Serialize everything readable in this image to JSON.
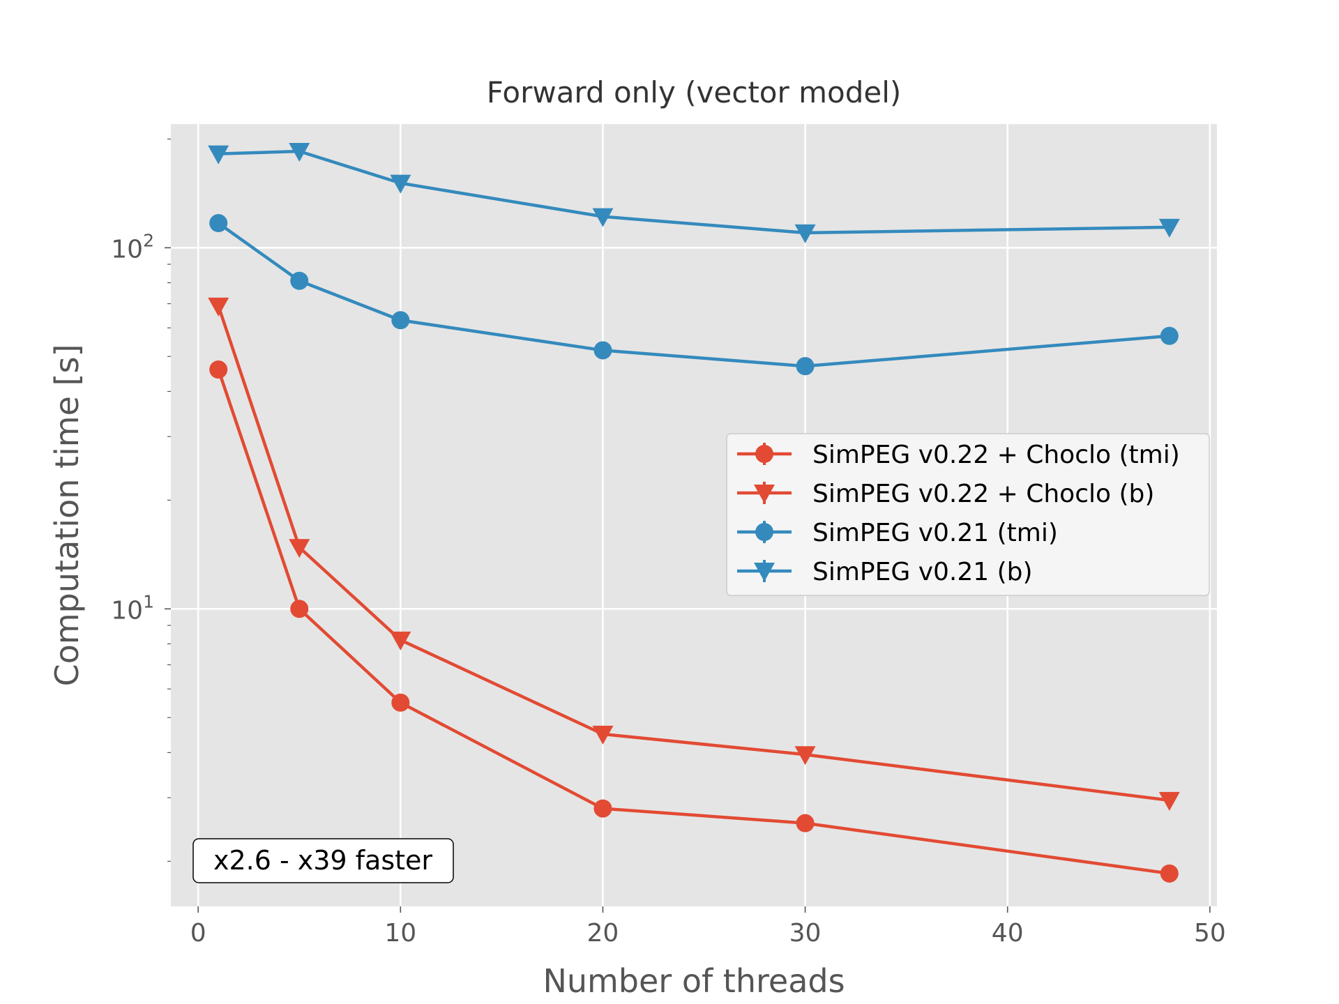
{
  "chart_data": {
    "type": "line",
    "title": "Forward only (vector model)",
    "xlabel": "Number of threads",
    "ylabel": "Computation time [s]",
    "xlim": [
      -1.35,
      50.35
    ],
    "ylim": [
      1.5,
      220
    ],
    "yscale": "log",
    "xticks": [
      0,
      10,
      20,
      30,
      40,
      50
    ],
    "xtick_labels": [
      "0",
      "10",
      "20",
      "30",
      "40",
      "50"
    ],
    "yticks": [
      10,
      100
    ],
    "ytick_labels": [
      {
        "base": "10",
        "exp": "1"
      },
      {
        "base": "10",
        "exp": "2"
      }
    ],
    "grid": true,
    "legend_position": "center-right",
    "annotation": "x2.6 - x39 faster",
    "x": [
      1,
      5,
      10,
      20,
      30,
      48
    ],
    "series": [
      {
        "name": "SimPEG v0.22 + Choclo (tmi)",
        "color": "#e24a33",
        "marker": "circle",
        "values": [
          46,
          10,
          5.5,
          2.8,
          2.55,
          1.85
        ]
      },
      {
        "name": "SimPEG v0.22 + Choclo (b)",
        "color": "#e24a33",
        "marker": "triangle-down",
        "values": [
          69,
          14.8,
          8.2,
          4.5,
          3.95,
          2.95
        ]
      },
      {
        "name": "SimPEG v0.21 (tmi)",
        "color": "#348abd",
        "marker": "circle",
        "values": [
          117,
          81,
          63,
          52,
          47,
          57
        ]
      },
      {
        "name": "SimPEG v0.21 (b)",
        "color": "#348abd",
        "marker": "triangle-down",
        "values": [
          182,
          185,
          151,
          122,
          110,
          114
        ]
      }
    ]
  }
}
